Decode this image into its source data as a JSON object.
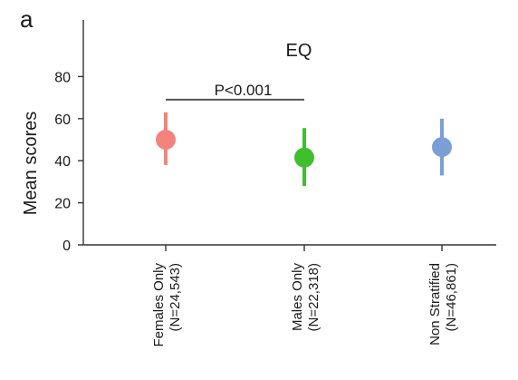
{
  "panel_label": "a",
  "chart_data": {
    "type": "scatter",
    "title": "EQ",
    "ylabel": "Mean scores",
    "xlabel": "",
    "ylim": [
      0,
      100
    ],
    "yticks": [
      0,
      20,
      40,
      60,
      80
    ],
    "grid": false,
    "legend": "none",
    "categories": [
      {
        "line1": "Females Only",
        "line2": "(N=24,543)"
      },
      {
        "line1": "Males Only",
        "line2": "(N=22,318)"
      },
      {
        "line1": "Non Stratified",
        "line2": "(N=46,861)"
      }
    ],
    "points": [
      {
        "mean": 50,
        "lower": 38,
        "upper": 63,
        "color": "#f4837d"
      },
      {
        "mean": 41.5,
        "lower": 28,
        "upper": 55.5,
        "color": "#3fbf2e"
      },
      {
        "mean": 46.5,
        "lower": 33,
        "upper": 60,
        "color": "#7b9fd4"
      }
    ],
    "significance": {
      "from": 0,
      "to": 1,
      "label": "P<0.001",
      "y": 69
    }
  }
}
